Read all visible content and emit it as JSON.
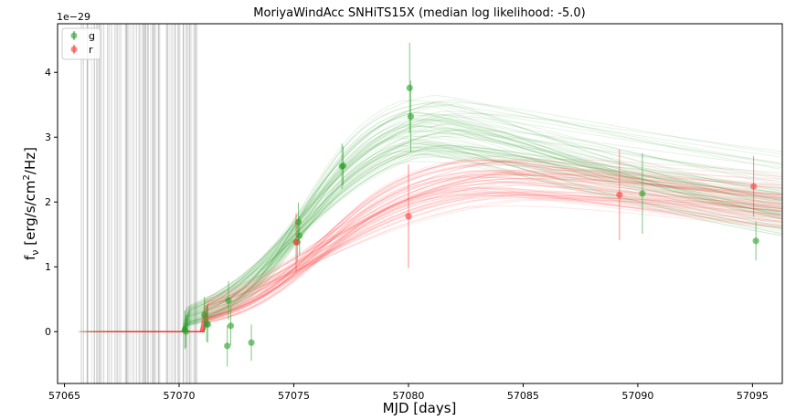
{
  "chart_data": {
    "type": "scatter",
    "title": "MoriyaWindAcc SNHiTS15X (median log likelihood: -5.0)",
    "xlabel": "MJD [days]",
    "ylabel": "f",
    "ylabel_sub": "ν",
    "ylabel_units": " [erg/s/cm",
    "ylabel_sup": "2",
    "ylabel_tail": "/Hz]",
    "y_offset_text": "1e−29",
    "xlim": [
      57064.7,
      57096.3
    ],
    "ylim": [
      -0.8,
      4.75
    ],
    "x_ticks": [
      57065,
      57070,
      57075,
      57080,
      57085,
      57090,
      57095
    ],
    "y_ticks": [
      0,
      1,
      2,
      3,
      4
    ],
    "legend_position": "upper-left",
    "colors": {
      "g": "#2ca02c",
      "r": "#ff3b3b",
      "vline": "#888888"
    },
    "series": [
      {
        "name": "g",
        "points": [
          {
            "x": 57070.25,
            "y": 0.03,
            "err": 0.3
          },
          {
            "x": 57070.3,
            "y": 0.0,
            "err": 0.25
          },
          {
            "x": 57071.1,
            "y": 0.26,
            "err": 0.28
          },
          {
            "x": 57071.2,
            "y": 0.12,
            "err": 0.28
          },
          {
            "x": 57071.25,
            "y": 0.11,
            "err": 0.28
          },
          {
            "x": 57072.15,
            "y": 0.48,
            "err": 0.3
          },
          {
            "x": 57072.1,
            "y": -0.22,
            "err": 0.32
          },
          {
            "x": 57072.25,
            "y": 0.09,
            "err": 0.3
          },
          {
            "x": 57073.15,
            "y": -0.17,
            "err": 0.28
          },
          {
            "x": 57075.15,
            "y": 1.38,
            "err": 0.3
          },
          {
            "x": 57075.2,
            "y": 1.69,
            "err": 0.3
          },
          {
            "x": 57075.25,
            "y": 1.48,
            "err": 0.3
          },
          {
            "x": 57077.1,
            "y": 2.55,
            "err": 0.35
          },
          {
            "x": 57077.15,
            "y": 2.56,
            "err": 0.3
          },
          {
            "x": 57080.05,
            "y": 3.76,
            "err": 0.7
          },
          {
            "x": 57080.1,
            "y": 3.32,
            "err": 0.55
          },
          {
            "x": 57090.2,
            "y": 2.13,
            "err": 0.62
          },
          {
            "x": 57095.15,
            "y": 1.4,
            "err": 0.3
          }
        ]
      },
      {
        "name": "r",
        "points": [
          {
            "x": 57075.1,
            "y": 1.38,
            "err": 0.45
          },
          {
            "x": 57080.0,
            "y": 1.78,
            "err": 0.8
          },
          {
            "x": 57089.2,
            "y": 2.11,
            "err": 0.7
          },
          {
            "x": 57095.05,
            "y": 2.24,
            "err": 0.47
          }
        ]
      }
    ],
    "model_curves": {
      "g": {
        "t0": 57073.8,
        "rise": 0.55,
        "peak": 3.35,
        "tpeak": 57080.8,
        "decay": 0.032
      },
      "r": {
        "t0": 57074.6,
        "rise": 0.42,
        "peak": 2.5,
        "tpeak": 57083.5,
        "decay": 0.018
      }
    }
  }
}
